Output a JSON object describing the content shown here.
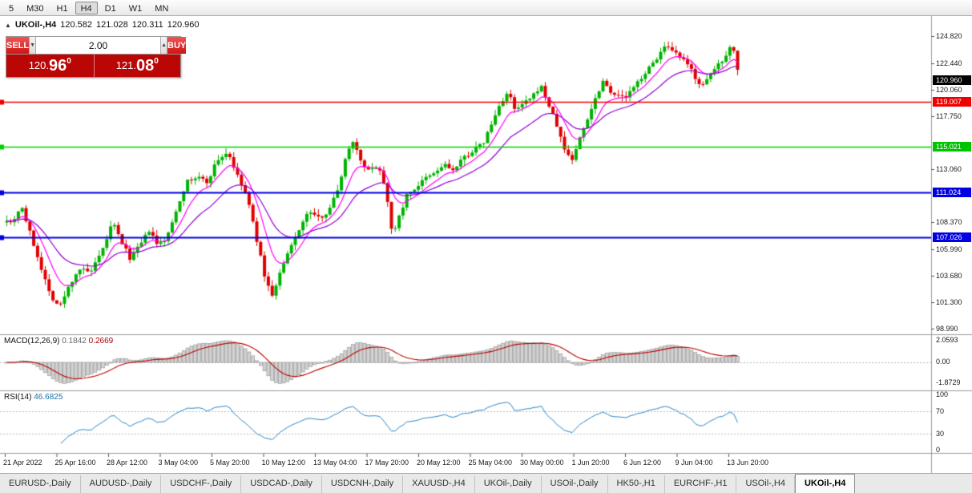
{
  "colors": {
    "up_candle": "#00b300",
    "down_candle": "#e00000",
    "ma_fast": "#ff00ff",
    "ma_slow": "#9400d3",
    "line_red": "#f00000",
    "line_green": "#00d400",
    "line_blue": "#0000e0",
    "badge_current_bg": "#000000",
    "badge_red_bg": "#f00000",
    "badge_green_bg": "#00c400",
    "badge_blue_bg": "#0000e0",
    "macd_hist_fill": "#d2d2d2",
    "macd_hist_stroke": "#8f8f8f",
    "macd_signal": "#c00000",
    "rsi_line": "#2787c9"
  },
  "toolbar": {
    "timeframes": [
      "5",
      "M30",
      "H1",
      "H4",
      "D1",
      "W1",
      "MN"
    ],
    "active": "H4"
  },
  "header": {
    "collapse_icon": "▲",
    "symbol": "UKOil-,H4",
    "open": "120.582",
    "high": "121.028",
    "low": "120.311",
    "close": "120.960"
  },
  "trade_panel": {
    "sell_label": "SELL",
    "buy_label": "BUY",
    "volume": "2.00",
    "spinner_down": "▼",
    "spinner_up": "▲",
    "sell_price": {
      "main": "120.",
      "big": "96",
      "sup": "0"
    },
    "buy_price": {
      "main": "121.",
      "big": "08",
      "sup": "0"
    }
  },
  "price_axis": {
    "labels": [
      "124.820",
      "122.440",
      "120.060",
      "117.750",
      "113.060",
      "108.370",
      "105.990",
      "103.680",
      "101.300",
      "98.990"
    ],
    "badges": [
      {
        "value": "120.960",
        "type": "current"
      },
      {
        "value": "119.007",
        "type": "red"
      },
      {
        "value": "115.021",
        "type": "green"
      },
      {
        "value": "111.024",
        "type": "blue"
      },
      {
        "value": "107.026",
        "type": "blue"
      }
    ]
  },
  "macd_panel": {
    "label": "MACD(12,26,9)",
    "value_main": "0.1842",
    "value_signal": "0.2669",
    "axis": [
      "2.0593",
      "0.00",
      "-1.8729"
    ]
  },
  "rsi_panel": {
    "label": "RSI(14)",
    "value": "46.6825",
    "axis": [
      "100",
      "70",
      "30",
      "0"
    ]
  },
  "time_axis": {
    "labels": [
      "21 Apr 2022",
      "25 Apr 16:00",
      "28 Apr 12:00",
      "3 May 04:00",
      "5 May 20:00",
      "10 May 12:00",
      "13 May 04:00",
      "17 May 20:00",
      "20 May 12:00",
      "25 May 04:00",
      "30 May 00:00",
      "1 Jun 20:00",
      "6 Jun 12:00",
      "9 Jun 04:00",
      "13 Jun 20:00"
    ]
  },
  "tabs": {
    "items": [
      "EURUSD-,Daily",
      "AUDUSD-,Daily",
      "USDCHF-,Daily",
      "USDCAD-,Daily",
      "USDCNH-,Daily",
      "XAUUSD-,H4",
      "UKOil-,Daily",
      "USOil-,Daily",
      "HK50-,H1",
      "EURCHF-,H1",
      "USOil-,H4",
      "UKOil-,H4"
    ],
    "active": "UKOil-,H4"
  },
  "chart_data": {
    "type": "candlestick",
    "symbol": "UKOil-",
    "timeframe": "H4",
    "current_ohlc": {
      "open": 120.582,
      "high": 121.028,
      "low": 120.311,
      "close": 120.96
    },
    "visible_price_range": [
      98.5,
      126.5
    ],
    "price_axis_ticks": [
      124.82,
      122.44,
      120.06,
      117.75,
      113.06,
      108.37,
      105.99,
      103.68,
      101.3,
      98.99
    ],
    "horizontal_lines": [
      {
        "price": 119.007,
        "color": "red"
      },
      {
        "price": 115.021,
        "color": "green"
      },
      {
        "price": 111.024,
        "color": "blue"
      },
      {
        "price": 107.026,
        "color": "blue"
      }
    ],
    "moving_averages": [
      {
        "period": 8,
        "color": "#ff00ff"
      },
      {
        "period": 21,
        "color": "#9400d3"
      }
    ],
    "indicators": [
      {
        "name": "MACD",
        "params": [
          12,
          26,
          9
        ],
        "current_values": [
          0.1842,
          0.2669
        ],
        "axis_range": [
          -1.8729,
          2.0593
        ]
      },
      {
        "name": "RSI",
        "params": [
          14
        ],
        "current_value": 46.6825,
        "axis_range": [
          0,
          100
        ],
        "levels": [
          30,
          70
        ]
      }
    ],
    "approx_bars": 191,
    "price_path_anchors": [
      [
        0,
        109.2
      ],
      [
        14,
        108.3
      ],
      [
        26,
        109.9
      ],
      [
        38,
        107.2
      ],
      [
        50,
        104.6
      ],
      [
        62,
        102.0
      ],
      [
        74,
        100.9
      ],
      [
        86,
        102.8
      ],
      [
        98,
        104.3
      ],
      [
        112,
        103.9
      ],
      [
        126,
        105.6
      ],
      [
        140,
        108.4
      ],
      [
        150,
        106.8
      ],
      [
        162,
        105.2
      ],
      [
        174,
        106.3
      ],
      [
        186,
        107.7
      ],
      [
        196,
        106.3
      ],
      [
        208,
        107.0
      ],
      [
        220,
        109.6
      ],
      [
        232,
        111.9
      ],
      [
        246,
        112.4
      ],
      [
        258,
        111.9
      ],
      [
        270,
        113.8
      ],
      [
        284,
        114.6
      ],
      [
        296,
        112.4
      ],
      [
        308,
        110.6
      ],
      [
        320,
        106.8
      ],
      [
        332,
        103.0
      ],
      [
        340,
        101.9
      ],
      [
        350,
        104.1
      ],
      [
        362,
        106.1
      ],
      [
        374,
        108.0
      ],
      [
        386,
        109.4
      ],
      [
        396,
        108.7
      ],
      [
        408,
        109.3
      ],
      [
        420,
        111.0
      ],
      [
        430,
        113.8
      ],
      [
        438,
        115.7
      ],
      [
        446,
        114.7
      ],
      [
        456,
        112.8
      ],
      [
        466,
        113.4
      ],
      [
        476,
        112.8
      ],
      [
        484,
        110.0
      ],
      [
        490,
        107.0
      ],
      [
        498,
        109.0
      ],
      [
        508,
        110.9
      ],
      [
        518,
        111.4
      ],
      [
        530,
        112.2
      ],
      [
        542,
        112.7
      ],
      [
        554,
        113.5
      ],
      [
        566,
        112.9
      ],
      [
        578,
        114.1
      ],
      [
        590,
        114.7
      ],
      [
        602,
        115.3
      ],
      [
        614,
        117.2
      ],
      [
        624,
        118.9
      ],
      [
        634,
        119.9
      ],
      [
        642,
        118.2
      ],
      [
        652,
        118.8
      ],
      [
        664,
        119.4
      ],
      [
        674,
        120.5
      ],
      [
        684,
        118.8
      ],
      [
        694,
        117.0
      ],
      [
        704,
        114.8
      ],
      [
        714,
        113.9
      ],
      [
        724,
        116.0
      ],
      [
        734,
        117.8
      ],
      [
        744,
        119.6
      ],
      [
        752,
        120.9
      ],
      [
        760,
        120.1
      ],
      [
        770,
        119.5
      ],
      [
        780,
        119.4
      ],
      [
        790,
        120.2
      ],
      [
        800,
        121.2
      ],
      [
        810,
        122.0
      ],
      [
        820,
        123.0
      ],
      [
        830,
        123.9
      ],
      [
        838,
        123.4
      ],
      [
        846,
        123.1
      ],
      [
        854,
        122.5
      ],
      [
        862,
        121.9
      ],
      [
        870,
        120.8
      ],
      [
        878,
        120.4
      ],
      [
        886,
        121.4
      ],
      [
        894,
        122.2
      ],
      [
        902,
        122.8
      ],
      [
        910,
        123.8
      ],
      [
        916,
        123.6
      ],
      [
        920,
        121.8
      ],
      [
        923,
        120.96
      ]
    ]
  }
}
